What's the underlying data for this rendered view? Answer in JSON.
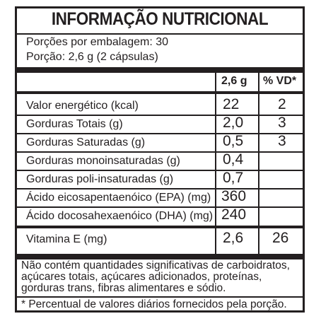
{
  "title": "INFORMAÇÃO NUTRICIONAL",
  "servings_per_package": "Porções por embalagem: 30",
  "serving_size": "Porção: 2,6 g (2 cápsulas)",
  "table": {
    "headers": {
      "amount": "2,6 g",
      "vd": "% VD*"
    },
    "rows": [
      {
        "label": "Valor energético (kcal)",
        "amount": "22",
        "vd": "2"
      },
      {
        "label": "Gorduras Totais (g)",
        "amount": "2,0",
        "vd": "3"
      },
      {
        "label": "Gorduras Saturadas (g)",
        "amount": "0,5",
        "vd": "3"
      },
      {
        "label": "Gorduras monoinsaturadas (g)",
        "amount": "0,4",
        "vd": ""
      },
      {
        "label": "Gorduras poli-insaturadas (g)",
        "amount": "0,7",
        "vd": ""
      },
      {
        "label": "Ácido eicosapentaenóico (EPA) (mg)",
        "amount": "360",
        "vd": ""
      },
      {
        "label": "Ácido docosahexaenóico (DHA) (mg)",
        "amount": "240",
        "vd": ""
      },
      {
        "label": "Vitamina E (mg)",
        "amount": "2,6",
        "vd": "26"
      }
    ]
  },
  "footnote_not_significant": "Não contém quantidades significativas de carboidratos, açúcares totais, açúcares adicionados, proteínas, gorduras trans, fibras alimentares e sódio.",
  "footnote_percent": "* Percentual de valores diários fornecidos pela porção."
}
